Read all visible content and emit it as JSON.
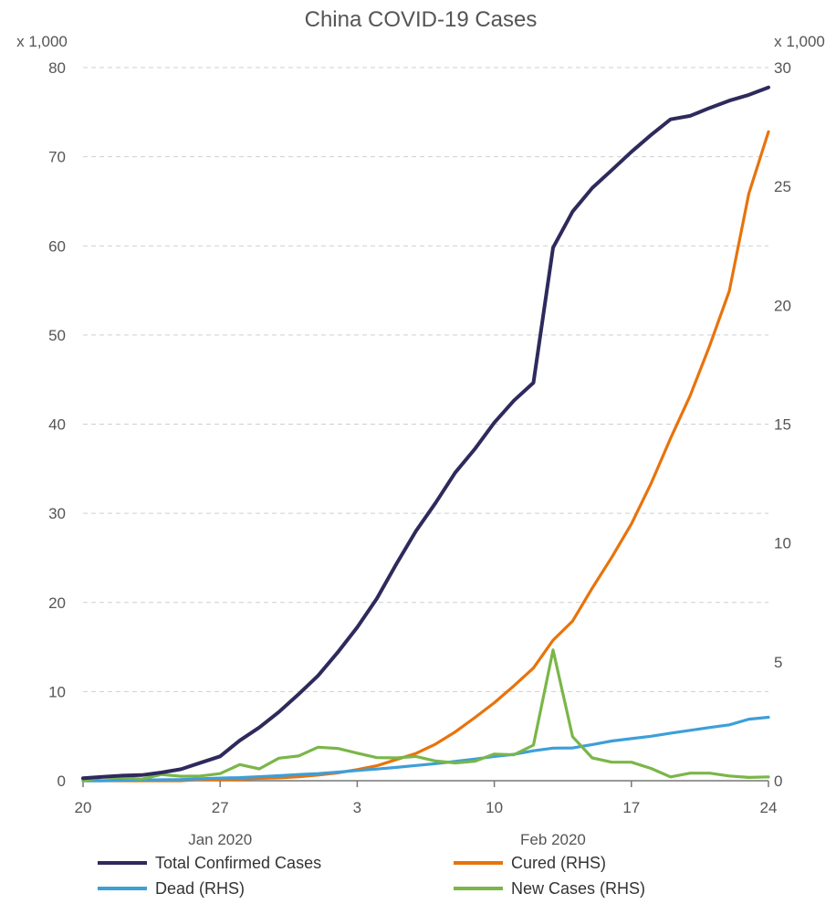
{
  "chart_data": {
    "type": "line",
    "title": "China COVID-19 Cases",
    "left_unit": "x 1,000",
    "right_unit": "x 1,000",
    "x_axis": {
      "start_day": 20,
      "end_day": 55,
      "ticks": [
        {
          "day": 20,
          "label": "20"
        },
        {
          "day": 27,
          "label": "27"
        },
        {
          "day": 34,
          "label": "3"
        },
        {
          "day": 41,
          "label": "10"
        },
        {
          "day": 48,
          "label": "17"
        },
        {
          "day": 55,
          "label": "24"
        }
      ],
      "month_labels": [
        {
          "day": 27,
          "label": "Jan 2020"
        },
        {
          "day": 44,
          "label": "Feb 2020"
        }
      ]
    },
    "y_left": {
      "min": 0,
      "max": 80,
      "ticks": [
        0,
        10,
        20,
        30,
        40,
        50,
        60,
        70,
        80
      ]
    },
    "y_right": {
      "min": 0,
      "max": 30,
      "ticks": [
        0,
        5,
        10,
        15,
        20,
        25,
        30
      ]
    },
    "grid": true,
    "legend_position": "bottom",
    "series": [
      {
        "name": "Total Confirmed Cases",
        "axis": "left",
        "color": "#2e2a5c",
        "points": [
          [
            20,
            0.28
          ],
          [
            21,
            0.44
          ],
          [
            22,
            0.57
          ],
          [
            23,
            0.64
          ],
          [
            24,
            0.92
          ],
          [
            25,
            1.29
          ],
          [
            26,
            2.02
          ],
          [
            27,
            2.74
          ],
          [
            28,
            4.52
          ],
          [
            29,
            5.97
          ],
          [
            30,
            7.71
          ],
          [
            31,
            9.69
          ],
          [
            32,
            11.79
          ],
          [
            33,
            14.38
          ],
          [
            34,
            17.21
          ],
          [
            35,
            20.44
          ],
          [
            36,
            24.32
          ],
          [
            37,
            28.02
          ],
          [
            38,
            31.16
          ],
          [
            39,
            34.55
          ],
          [
            40,
            37.19
          ],
          [
            41,
            40.17
          ],
          [
            42,
            42.64
          ],
          [
            43,
            44.65
          ],
          [
            44,
            59.8
          ],
          [
            45,
            63.85
          ],
          [
            46,
            66.49
          ],
          [
            47,
            68.5
          ],
          [
            48,
            70.55
          ],
          [
            49,
            72.44
          ],
          [
            50,
            74.19
          ],
          [
            51,
            74.58
          ],
          [
            52,
            75.47
          ],
          [
            53,
            76.29
          ],
          [
            54,
            76.94
          ],
          [
            55,
            77.78
          ]
        ]
      },
      {
        "name": "Cured (RHS)",
        "axis": "right",
        "color": "#e8730c",
        "points": [
          [
            20,
            0.0
          ],
          [
            21,
            0.0
          ],
          [
            22,
            0.0
          ],
          [
            23,
            0.0
          ],
          [
            24,
            0.0
          ],
          [
            25,
            0.0
          ],
          [
            26,
            0.05
          ],
          [
            27,
            0.05
          ],
          [
            28,
            0.06
          ],
          [
            29,
            0.1
          ],
          [
            30,
            0.12
          ],
          [
            31,
            0.17
          ],
          [
            32,
            0.24
          ],
          [
            33,
            0.33
          ],
          [
            34,
            0.47
          ],
          [
            35,
            0.63
          ],
          [
            36,
            0.89
          ],
          [
            37,
            1.15
          ],
          [
            38,
            1.54
          ],
          [
            39,
            2.05
          ],
          [
            40,
            2.65
          ],
          [
            41,
            3.28
          ],
          [
            42,
            3.99
          ],
          [
            43,
            4.74
          ],
          [
            44,
            5.91
          ],
          [
            45,
            6.72
          ],
          [
            46,
            8.1
          ],
          [
            47,
            9.4
          ],
          [
            48,
            10.8
          ],
          [
            49,
            12.5
          ],
          [
            50,
            14.4
          ],
          [
            51,
            16.2
          ],
          [
            52,
            18.3
          ],
          [
            53,
            20.6
          ],
          [
            54,
            24.7
          ],
          [
            55,
            27.3
          ]
        ]
      },
      {
        "name": "Dead (RHS)",
        "axis": "right",
        "color": "#3d9fd8",
        "points": [
          [
            20,
            0.0
          ],
          [
            21,
            0.0
          ],
          [
            22,
            0.02
          ],
          [
            23,
            0.03
          ],
          [
            24,
            0.04
          ],
          [
            25,
            0.05
          ],
          [
            26,
            0.08
          ],
          [
            27,
            0.11
          ],
          [
            28,
            0.13
          ],
          [
            29,
            0.17
          ],
          [
            30,
            0.21
          ],
          [
            31,
            0.26
          ],
          [
            32,
            0.3
          ],
          [
            33,
            0.36
          ],
          [
            34,
            0.43
          ],
          [
            35,
            0.49
          ],
          [
            36,
            0.56
          ],
          [
            37,
            0.64
          ],
          [
            38,
            0.72
          ],
          [
            39,
            0.81
          ],
          [
            40,
            0.91
          ],
          [
            41,
            1.02
          ],
          [
            42,
            1.11
          ],
          [
            43,
            1.26
          ],
          [
            44,
            1.37
          ],
          [
            45,
            1.38
          ],
          [
            46,
            1.52
          ],
          [
            47,
            1.67
          ],
          [
            48,
            1.77
          ],
          [
            49,
            1.87
          ],
          [
            50,
            2.0
          ],
          [
            51,
            2.12
          ],
          [
            52,
            2.24
          ],
          [
            53,
            2.35
          ],
          [
            54,
            2.59
          ],
          [
            55,
            2.67
          ]
        ]
      },
      {
        "name": "New Cases (RHS)",
        "axis": "right",
        "color": "#7ab648",
        "points": [
          [
            20,
            0.0
          ],
          [
            21,
            0.15
          ],
          [
            22,
            0.13
          ],
          [
            23,
            0.07
          ],
          [
            24,
            0.26
          ],
          [
            25,
            0.19
          ],
          [
            26,
            0.2
          ],
          [
            27,
            0.3
          ],
          [
            28,
            0.68
          ],
          [
            29,
            0.5
          ],
          [
            30,
            0.95
          ],
          [
            31,
            1.04
          ],
          [
            32,
            1.41
          ],
          [
            33,
            1.36
          ],
          [
            34,
            1.16
          ],
          [
            35,
            0.97
          ],
          [
            36,
            0.96
          ],
          [
            37,
            1.02
          ],
          [
            38,
            0.83
          ],
          [
            39,
            0.75
          ],
          [
            40,
            0.82
          ],
          [
            41,
            1.12
          ],
          [
            42,
            1.09
          ],
          [
            43,
            1.5
          ],
          [
            44,
            5.5
          ],
          [
            45,
            1.85
          ],
          [
            46,
            0.96
          ],
          [
            47,
            0.78
          ],
          [
            48,
            0.78
          ],
          [
            49,
            0.52
          ],
          [
            50,
            0.16
          ],
          [
            51,
            0.32
          ],
          [
            52,
            0.32
          ],
          [
            53,
            0.2
          ],
          [
            54,
            0.14
          ],
          [
            55,
            0.16
          ]
        ]
      }
    ]
  }
}
